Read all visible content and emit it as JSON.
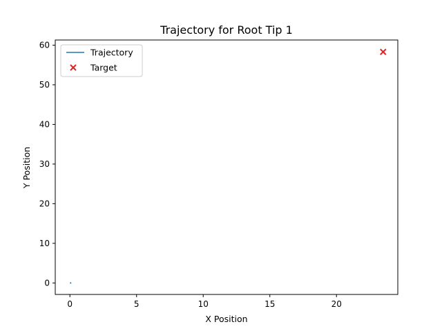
{
  "chart_data": {
    "type": "line",
    "title": "Trajectory for Root Tip 1",
    "xlabel": "X Position",
    "ylabel": "Y Position",
    "xlim": [
      -1.1,
      24.6
    ],
    "ylim": [
      -2.9,
      61.3
    ],
    "xticks": [
      0,
      5,
      10,
      15,
      20
    ],
    "yticks": [
      0,
      10,
      20,
      30,
      40,
      50,
      60
    ],
    "grid": false,
    "legend_position": "top-left",
    "series": [
      {
        "name": "Trajectory",
        "kind": "line",
        "color": "#1f77b4",
        "x": [
          0.05,
          0.07,
          0.09
        ],
        "y": [
          0.0,
          0.05,
          0.1
        ]
      },
      {
        "name": "Target",
        "kind": "scatter",
        "marker": "x",
        "color": "#d62728",
        "x": [
          23.5
        ],
        "y": [
          58.3
        ]
      }
    ]
  }
}
